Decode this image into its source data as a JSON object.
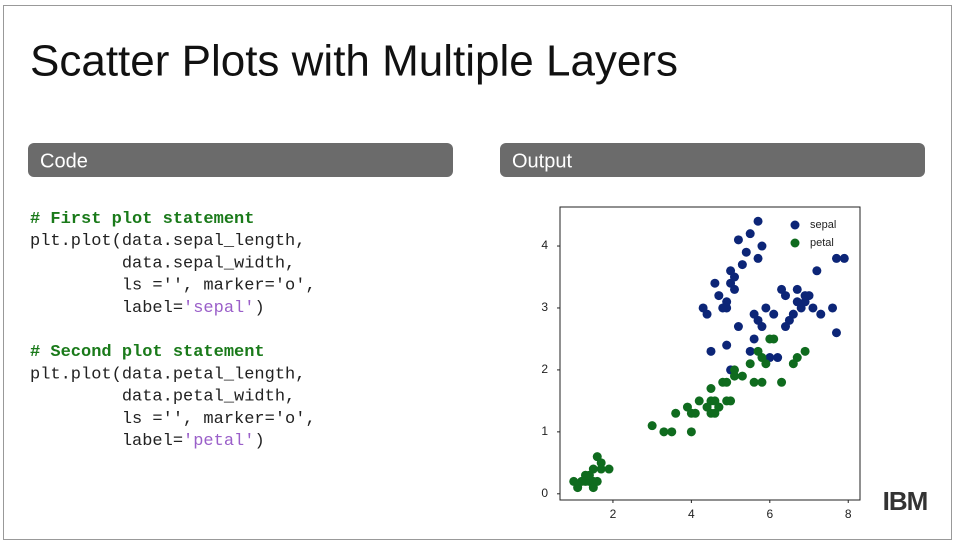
{
  "slide": {
    "title": "Scatter Plots with Multiple Layers",
    "code_header": "Code",
    "output_header": "Output",
    "logo": "IBM",
    "code": [
      [
        {
          "text": "# First plot statement",
          "color": "#1a7a1a"
        }
      ],
      [
        {
          "text": "plt.plot(data.sepal_length,",
          "color": "#222222"
        }
      ],
      [
        {
          "text": "         data.sepal_width,",
          "color": "#222222"
        }
      ],
      [
        {
          "text": "         ls ='', marker='o',",
          "color": "#222222"
        }
      ],
      [
        {
          "text": "         label=",
          "color": "#222222"
        },
        {
          "text": "'sepal'",
          "color": "#9a5fc9"
        },
        {
          "text": ")",
          "color": "#222222"
        }
      ],
      [],
      [
        {
          "text": "# Second plot statement",
          "color": "#1a7a1a"
        }
      ],
      [
        {
          "text": "plt.plot(data.petal_length,",
          "color": "#222222"
        }
      ],
      [
        {
          "text": "         data.petal_width,",
          "color": "#222222"
        }
      ],
      [
        {
          "text": "         ls ='', marker='o',",
          "color": "#222222"
        }
      ],
      [
        {
          "text": "         label=",
          "color": "#222222"
        },
        {
          "text": "'petal'",
          "color": "#9a5fc9"
        },
        {
          "text": ")",
          "color": "#222222"
        }
      ]
    ]
  },
  "chart_data": {
    "type": "scatter",
    "xlim": [
      0.65,
      8.3
    ],
    "ylim": [
      -0.1,
      4.63
    ],
    "xticks": [
      2,
      4,
      6,
      8
    ],
    "yticks": [
      0,
      1,
      2,
      3,
      4
    ],
    "legend": "upper right",
    "series": [
      {
        "name": "sepal",
        "color": "#0c2577",
        "x": [
          5.1,
          4.9,
          4.7,
          5.0,
          5.4,
          4.6,
          4.4,
          4.9,
          4.8,
          4.3,
          5.8,
          5.7,
          5.7,
          5.1,
          5.2,
          5.5,
          4.5,
          5.3,
          5.0,
          7.0,
          6.4,
          6.9,
          5.5,
          6.5,
          5.7,
          6.3,
          4.9,
          6.6,
          5.2,
          5.0,
          5.9,
          6.0,
          6.1,
          5.6,
          6.7,
          5.8,
          6.2,
          5.6,
          7.1,
          7.6,
          7.3,
          7.2,
          6.4,
          6.8,
          7.7,
          7.7,
          6.9,
          7.9,
          6.7
        ],
        "y": [
          3.5,
          3.0,
          3.2,
          3.6,
          3.9,
          3.4,
          2.9,
          3.1,
          3.0,
          3.0,
          4.0,
          4.4,
          3.8,
          3.3,
          4.1,
          4.2,
          2.3,
          3.7,
          3.4,
          3.2,
          3.2,
          3.1,
          2.3,
          2.8,
          2.8,
          3.3,
          2.4,
          2.9,
          2.7,
          2.0,
          3.0,
          2.2,
          2.9,
          2.9,
          3.1,
          2.7,
          2.2,
          2.5,
          3.0,
          3.0,
          2.9,
          3.6,
          2.7,
          3.0,
          3.8,
          2.6,
          3.2,
          3.8,
          3.3
        ]
      },
      {
        "name": "petal",
        "color": "#0f6b1e",
        "x": [
          1.4,
          1.3,
          1.5,
          1.7,
          1.4,
          1.5,
          1.6,
          1.1,
          1.2,
          1.9,
          1.6,
          1.0,
          1.5,
          1.3,
          1.7,
          4.7,
          4.5,
          4.9,
          4.0,
          4.6,
          4.5,
          3.3,
          4.6,
          3.9,
          3.5,
          4.2,
          4.0,
          4.7,
          3.6,
          4.4,
          4.8,
          3.0,
          4.1,
          6.0,
          5.1,
          5.9,
          5.6,
          5.8,
          6.6,
          4.5,
          6.3,
          5.8,
          6.1,
          5.1,
          5.3,
          5.5,
          6.7,
          6.9,
          5.0,
          5.7,
          4.9
        ],
        "y": [
          0.2,
          0.2,
          0.2,
          0.4,
          0.3,
          0.1,
          0.2,
          0.1,
          0.2,
          0.4,
          0.6,
          0.2,
          0.4,
          0.3,
          0.5,
          1.4,
          1.5,
          1.5,
          1.3,
          1.5,
          1.3,
          1.0,
          1.3,
          1.4,
          1.0,
          1.5,
          1.0,
          1.4,
          1.3,
          1.4,
          1.8,
          1.1,
          1.3,
          2.5,
          1.9,
          2.1,
          1.8,
          2.2,
          2.1,
          1.7,
          1.8,
          1.8,
          2.5,
          2.0,
          1.9,
          2.1,
          2.2,
          2.3,
          1.5,
          2.3,
          1.8
        ]
      }
    ]
  }
}
